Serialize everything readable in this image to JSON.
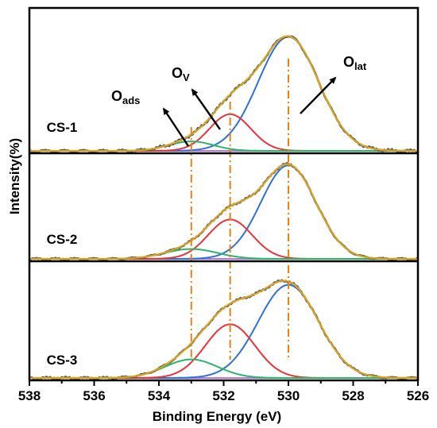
{
  "chart_data": {
    "type": "line",
    "title": "",
    "xlabel": "Binding Energy (eV)",
    "ylabel": "Intensity(%)",
    "xlim": [
      538,
      526
    ],
    "x_reversed": true,
    "x_ticks": [
      538,
      536,
      534,
      532,
      530,
      528,
      526
    ],
    "x_tick_labels": [
      "538",
      "536",
      "534",
      "532",
      "530",
      "528",
      "526"
    ],
    "y_ticks_shown": false,
    "reference_lines": [
      533.0,
      531.8,
      530.0
    ],
    "reference_line_style": "dash-dot",
    "reference_line_color": "#e8820f",
    "component_colors": {
      "raw": "#555555",
      "fit": "#d9a520",
      "O_lat": "#2e6fd9",
      "O_v": "#e8333b",
      "O_ads": "#2db36b",
      "background": "#b57bd6"
    },
    "panels": [
      {
        "label": "CS-1",
        "peaks": [
          {
            "component": "O_lat",
            "center": 530.0,
            "height": 0.84,
            "fwhm": 2.2
          },
          {
            "component": "O_v",
            "center": 531.8,
            "height": 0.27,
            "fwhm": 1.5
          },
          {
            "component": "O_ads",
            "center": 533.0,
            "height": 0.07,
            "fwhm": 1.6
          }
        ]
      },
      {
        "label": "CS-2",
        "peaks": [
          {
            "component": "O_lat",
            "center": 530.0,
            "height": 0.95,
            "fwhm": 2.0
          },
          {
            "component": "O_v",
            "center": 531.8,
            "height": 0.4,
            "fwhm": 1.6
          },
          {
            "component": "O_ads",
            "center": 533.0,
            "height": 0.1,
            "fwhm": 1.9
          }
        ]
      },
      {
        "label": "CS-3",
        "peaks": [
          {
            "component": "O_lat",
            "center": 530.0,
            "height": 0.85,
            "fwhm": 2.2
          },
          {
            "component": "O_v",
            "center": 531.8,
            "height": 0.49,
            "fwhm": 1.8
          },
          {
            "component": "O_ads",
            "center": 533.0,
            "height": 0.17,
            "fwhm": 1.9
          }
        ]
      }
    ],
    "annotations": [
      {
        "base": "O",
        "sub": "ads"
      },
      {
        "base": "O",
        "sub": "V"
      },
      {
        "base": "O",
        "sub": "lat"
      }
    ]
  }
}
